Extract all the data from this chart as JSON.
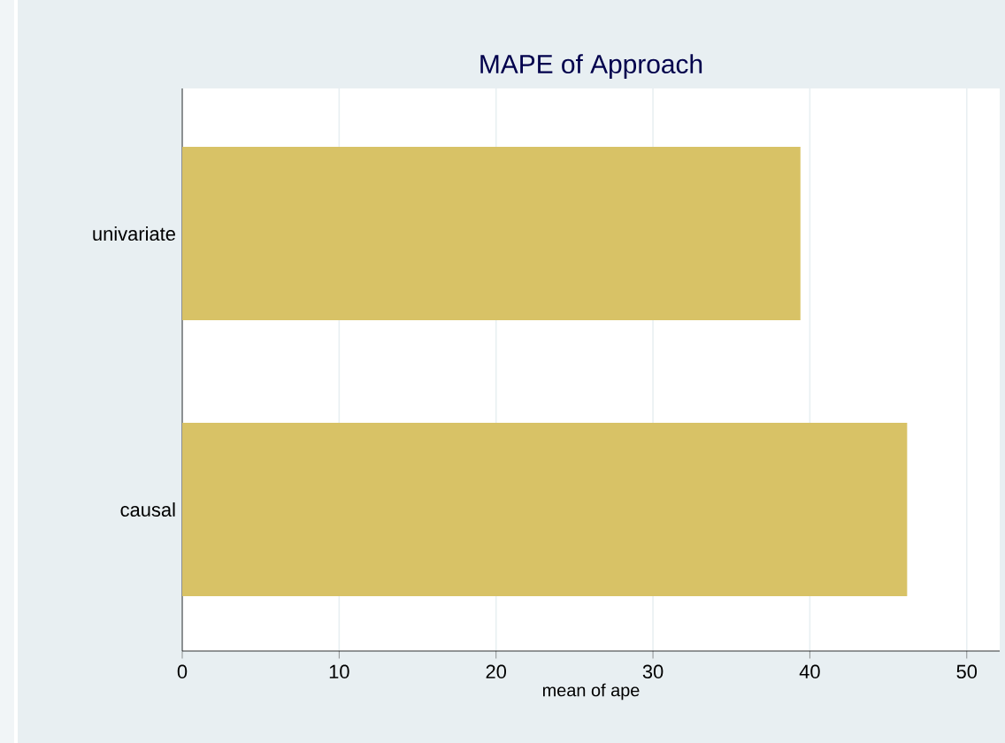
{
  "chart_data": {
    "type": "bar",
    "orientation": "horizontal",
    "title": "MAPE of Approach",
    "xlabel": "mean of ape",
    "categories": [
      "univariate",
      "causal"
    ],
    "values": [
      39.4,
      46.2
    ],
    "color": "#d8c266",
    "xlim": [
      0,
      52.1
    ],
    "xticks": [
      0,
      10,
      20,
      30,
      40,
      50
    ],
    "grid": "x"
  }
}
